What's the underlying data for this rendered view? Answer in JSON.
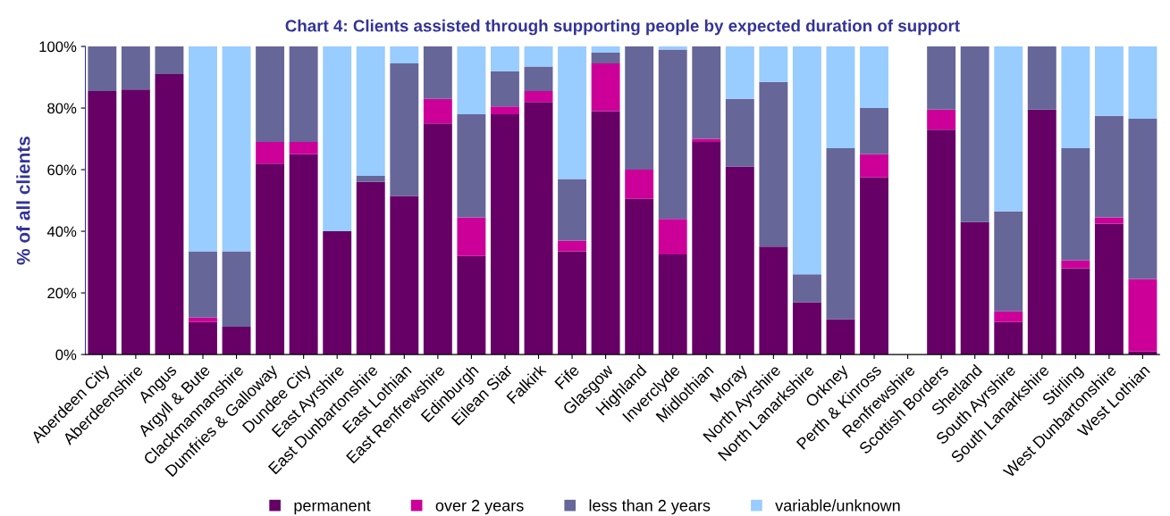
{
  "chart_data": {
    "type": "bar",
    "stacked": true,
    "title": "Chart 4: Clients assisted through supporting people by expected duration of support",
    "ylabel": "% of all clients",
    "categories": [
      "Aberdeen City",
      "Aberdeenshire",
      "Angus",
      "Argyll & Bute",
      "Clackmannanshire",
      "Dumfries & Galloway",
      "Dundee City",
      "East Ayrshire",
      "East Dunbartonshire",
      "East Lothian",
      "East Renfrewshire",
      "Edinburgh",
      "Eilean Siar",
      "Falkirk",
      "Fife",
      "Glasgow",
      "Highland",
      "Inverclyde",
      "Midlothian",
      "Moray",
      "North Ayrshire",
      "North Lanarkshire",
      "Orkney",
      "Perth & Kinross",
      "Renfrewshire",
      "Scottish Borders",
      "Shetland",
      "South Ayrshire",
      "South Lanarkshire",
      "Stirling",
      "West Dunbartonshire",
      "West Lothian"
    ],
    "series": [
      {
        "name": "permanent",
        "color": "#660066",
        "values": [
          85.5,
          86,
          91,
          10.5,
          9,
          62,
          65,
          40,
          56,
          51.5,
          75,
          32,
          78,
          82,
          33.5,
          79,
          50.5,
          32.5,
          69,
          61,
          35,
          17,
          11.5,
          57.5,
          0,
          73,
          43,
          10.5,
          79.5,
          28,
          42.5,
          1
        ]
      },
      {
        "name": "over 2 years",
        "color": "#cc0099",
        "values": [
          0,
          0,
          0,
          1.5,
          0,
          7,
          4,
          0,
          0,
          0,
          8,
          12.5,
          2.5,
          3.5,
          3.5,
          15.5,
          9.5,
          11.5,
          1,
          0,
          0,
          0,
          0,
          7.5,
          0,
          6.5,
          0,
          3.5,
          0,
          2.5,
          2,
          23.5
        ]
      },
      {
        "name": "less than 2 years",
        "color": "#666699",
        "values": [
          14.5,
          14,
          9,
          21.5,
          24.5,
          31,
          31,
          0,
          2,
          43,
          17,
          33.5,
          11.5,
          8,
          20,
          3.5,
          40,
          55,
          30,
          22,
          53.5,
          9,
          55.5,
          15,
          0,
          20.5,
          57,
          32.5,
          20.5,
          36.5,
          33,
          52
        ]
      },
      {
        "name": "variable/unknown",
        "color": "#99ccff",
        "values": [
          0,
          0,
          0,
          66.5,
          66.5,
          0,
          0,
          60,
          42,
          5.5,
          0,
          22,
          8,
          6.5,
          43,
          2,
          0,
          1,
          0,
          17,
          11.5,
          74,
          33,
          20,
          0,
          0,
          0,
          53.5,
          0,
          33,
          22.5,
          23.5
        ]
      }
    ],
    "ylim": [
      0,
      100
    ],
    "yticks": [
      {
        "value": 0,
        "label": "0%"
      },
      {
        "value": 20,
        "label": "20%"
      },
      {
        "value": 40,
        "label": "40%"
      },
      {
        "value": 60,
        "label": "60%"
      },
      {
        "value": 80,
        "label": "80%"
      },
      {
        "value": 100,
        "label": "100%"
      }
    ],
    "grid": false,
    "legend": "bottom"
  }
}
